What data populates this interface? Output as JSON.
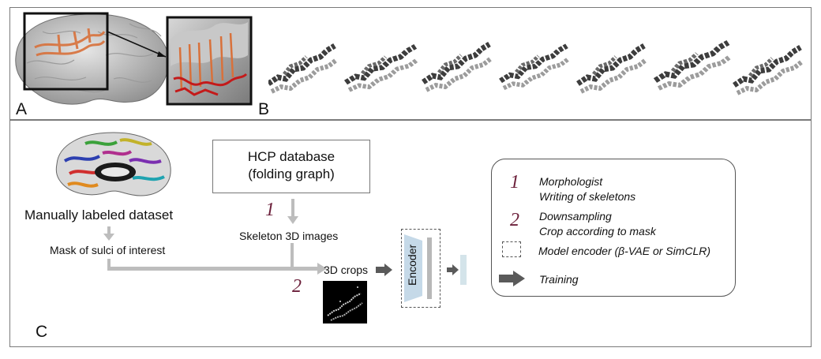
{
  "panels": {
    "a_label": "A",
    "b_label": "B",
    "c_label": "C"
  },
  "pipeline": {
    "hcp_box_line1": "HCP database",
    "hcp_box_line2": "(folding graph)",
    "manual_label": "Manually labeled dataset",
    "mask_label": "Mask of sulci of interest",
    "skeleton_label": "Skeleton 3D images",
    "crops_label": "3D crops",
    "step1_number": "1",
    "step2_number": "2",
    "encoder_label": "Encoder"
  },
  "legend": {
    "item1_number": "1",
    "item1_line1": "Morphologist",
    "item1_line2": "Writing of skeletons",
    "item2_number": "2",
    "item2_line1": "Downsampling",
    "item2_line2": "Crop according to mask",
    "item3_text": "Model encoder (β-VAE or SimCLR)",
    "item4_text": "Training"
  },
  "colors": {
    "step_number": "#6b1f3a",
    "arrow_gray": "#bdbdbd",
    "arrow_dark": "#5a5a5a",
    "encoder_blue": "#c5d9e8",
    "latent_blue": "#d4e4ea"
  },
  "icons": [
    "brain-surface-image",
    "zoom-sulcus-image",
    "sulcus-skeleton-3d-image",
    "labeled-brain-image",
    "crop-slice-image",
    "encoder-trapezoid-icon",
    "dashed-box-icon",
    "training-arrow-icon"
  ]
}
